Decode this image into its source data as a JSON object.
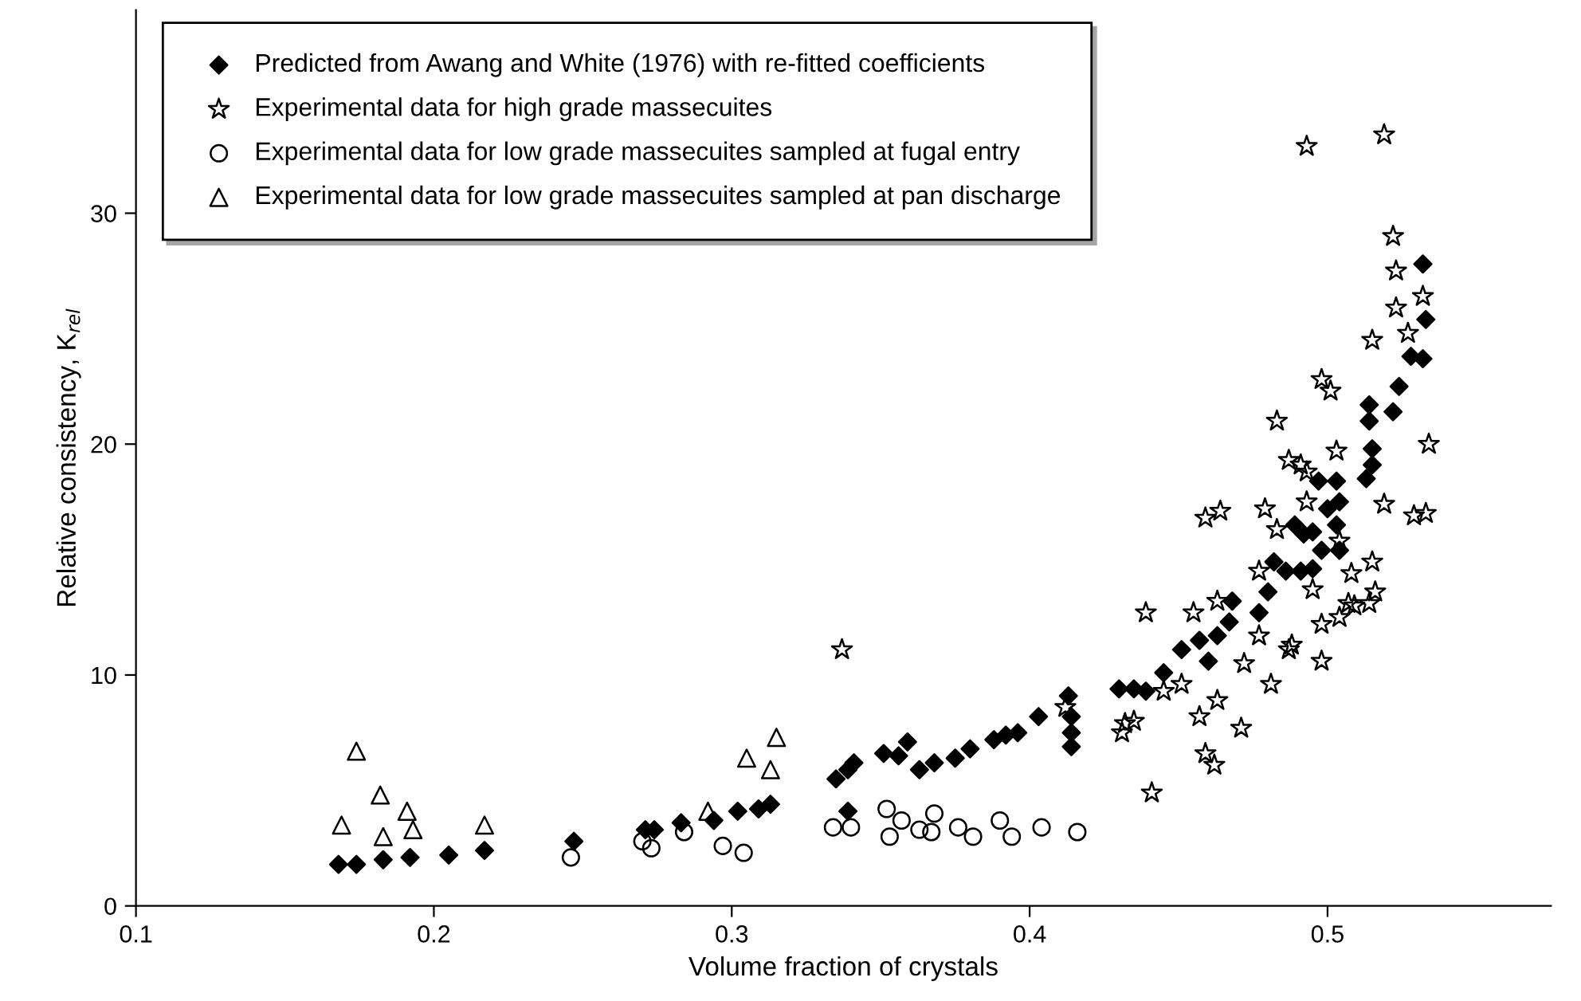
{
  "chart_data": {
    "type": "scatter",
    "xlabel": "Volume fraction of crystals",
    "ylabel": "Relative consistency, K$_{rel}$",
    "xlim": [
      0.1,
      0.575
    ],
    "xticks": [
      0.1,
      0.2,
      0.3,
      0.4,
      0.5
    ],
    "ylim": [
      0,
      38.8
    ],
    "yticks": [
      0,
      10,
      20,
      30
    ],
    "grid": false,
    "legend": "top left",
    "series": [
      {
        "name": "Predicted from Awang and White (1976) with re-fitted coefficients",
        "color": "#000000",
        "marker": "diamond",
        "x": [
          0.168,
          0.174,
          0.183,
          0.192,
          0.205,
          0.217,
          0.247,
          0.271,
          0.274,
          0.283,
          0.294,
          0.302,
          0.309,
          0.313,
          0.335,
          0.339,
          0.341,
          0.351,
          0.356,
          0.359,
          0.363,
          0.368,
          0.375,
          0.38,
          0.388,
          0.392,
          0.396,
          0.403,
          0.413,
          0.414,
          0.414,
          0.414,
          0.43,
          0.435,
          0.339,
          0.439,
          0.445,
          0.451,
          0.457,
          0.46,
          0.463,
          0.467,
          0.468,
          0.477,
          0.48,
          0.482,
          0.486,
          0.491,
          0.489,
          0.492,
          0.497,
          0.5,
          0.498,
          0.532,
          0.533,
          0.528,
          0.532,
          0.524,
          0.522,
          0.514,
          0.514,
          0.515,
          0.515,
          0.513,
          0.503,
          0.504,
          0.503,
          0.495,
          0.504,
          0.495
        ],
        "values": [
          1.8,
          1.8,
          2.0,
          2.1,
          2.2,
          2.4,
          2.8,
          3.3,
          3.3,
          3.6,
          3.7,
          4.1,
          4.2,
          4.4,
          5.5,
          5.9,
          6.2,
          6.6,
          6.5,
          7.1,
          5.9,
          6.2,
          6.4,
          6.8,
          7.2,
          7.4,
          7.5,
          8.2,
          9.1,
          8.2,
          7.5,
          6.9,
          9.4,
          9.4,
          4.1,
          9.3,
          10.1,
          11.1,
          11.5,
          10.6,
          11.7,
          12.3,
          13.2,
          12.7,
          13.6,
          14.9,
          14.5,
          14.5,
          16.5,
          16.1,
          18.4,
          17.2,
          15.4,
          27.8,
          25.4,
          23.8,
          23.7,
          22.5,
          21.4,
          21.7,
          21.0,
          19.8,
          19.1,
          18.5,
          18.4,
          17.5,
          16.5,
          16.2,
          15.4,
          14.6
        ]
      },
      {
        "name": "Experimental data for high grade massecuites",
        "color": "#000000",
        "marker": "star",
        "x": [
          0.337,
          0.431,
          0.435,
          0.412,
          0.483,
          0.491,
          0.503,
          0.459,
          0.464,
          0.479,
          0.483,
          0.493,
          0.477,
          0.495,
          0.507,
          0.498,
          0.498,
          0.439,
          0.455,
          0.463,
          0.477,
          0.488,
          0.472,
          0.481,
          0.451,
          0.445,
          0.432,
          0.463,
          0.457,
          0.471,
          0.459,
          0.462,
          0.441,
          0.493,
          0.519,
          0.522,
          0.523,
          0.532,
          0.523,
          0.527,
          0.515,
          0.498,
          0.501,
          0.534,
          0.487,
          0.493,
          0.519,
          0.529,
          0.533,
          0.515,
          0.504,
          0.508,
          0.516,
          0.514,
          0.509,
          0.504,
          0.487
        ],
        "values": [
          11.1,
          7.5,
          8.0,
          8.6,
          21.0,
          19.1,
          19.7,
          16.8,
          17.1,
          17.2,
          16.3,
          17.5,
          14.5,
          13.7,
          13.1,
          12.2,
          10.6,
          12.7,
          12.7,
          13.2,
          11.7,
          11.3,
          10.5,
          9.6,
          9.6,
          9.3,
          7.9,
          8.9,
          8.2,
          7.7,
          6.6,
          6.1,
          4.9,
          32.9,
          33.4,
          29.0,
          27.5,
          26.4,
          25.9,
          24.8,
          24.5,
          22.8,
          22.3,
          20.0,
          19.3,
          18.8,
          17.4,
          16.9,
          17.0,
          14.9,
          15.8,
          14.4,
          13.6,
          13.1,
          13.0,
          12.5,
          11.1
        ]
      },
      {
        "name": "Experimental data for low grade massecuites sampled at fugal entry",
        "color": "#000000",
        "marker": "circle",
        "x": [
          0.246,
          0.27,
          0.273,
          0.297,
          0.304,
          0.284,
          0.334,
          0.34,
          0.352,
          0.357,
          0.363,
          0.368,
          0.367,
          0.376,
          0.381,
          0.39,
          0.394,
          0.404,
          0.416,
          0.353
        ],
        "values": [
          2.1,
          2.8,
          2.5,
          2.6,
          2.3,
          3.2,
          3.4,
          3.4,
          4.2,
          3.7,
          3.3,
          4.0,
          3.2,
          3.4,
          3.0,
          3.7,
          3.0,
          3.4,
          3.2,
          3.0
        ]
      },
      {
        "name": "Experimental data for low grade massecuites sampled at pan discharge",
        "color": "#000000",
        "marker": "triangle",
        "x": [
          0.174,
          0.169,
          0.182,
          0.183,
          0.191,
          0.193,
          0.217,
          0.305,
          0.315,
          0.313,
          0.292
        ],
        "values": [
          6.7,
          3.5,
          4.8,
          3.0,
          4.1,
          3.3,
          3.5,
          6.4,
          7.3,
          5.9,
          4.1
        ]
      }
    ]
  }
}
